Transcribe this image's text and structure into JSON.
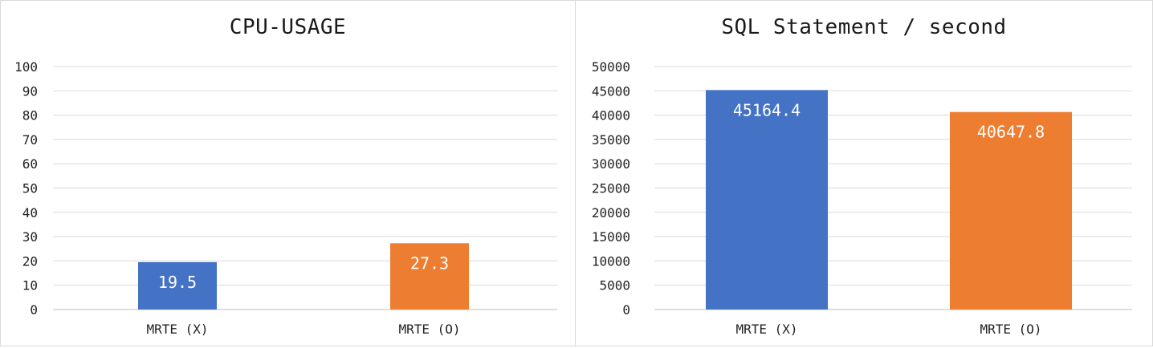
{
  "chart_data": [
    {
      "type": "bar",
      "title": "CPU-USAGE",
      "categories": [
        "MRTE (X)",
        "MRTE (O)"
      ],
      "values": [
        19.5,
        27.3
      ],
      "data_labels": [
        "19.5",
        "27.3"
      ],
      "colors": [
        "#4472c4",
        "#ed7d31"
      ],
      "ylim": [
        0,
        100
      ],
      "yticks": [
        0,
        10,
        20,
        30,
        40,
        50,
        60,
        70,
        80,
        90,
        100
      ],
      "ytick_labels": [
        "0",
        "10",
        "20",
        "30",
        "40",
        "50",
        "60",
        "70",
        "80",
        "90",
        "100"
      ],
      "xlabel": "",
      "ylabel": "",
      "grid": true,
      "legend": "none"
    },
    {
      "type": "bar",
      "title": "SQL Statement / second",
      "categories": [
        "MRTE (X)",
        "MRTE (O)"
      ],
      "values": [
        45164.4,
        40647.8
      ],
      "data_labels": [
        "45164.4",
        "40647.8"
      ],
      "colors": [
        "#4472c4",
        "#ed7d31"
      ],
      "ylim": [
        0,
        50000
      ],
      "yticks": [
        0,
        5000,
        10000,
        15000,
        20000,
        25000,
        30000,
        35000,
        40000,
        45000,
        50000
      ],
      "ytick_labels": [
        "0",
        "5000",
        "10000",
        "15000",
        "20000",
        "25000",
        "30000",
        "35000",
        "40000",
        "45000",
        "50000"
      ],
      "xlabel": "",
      "ylabel": "",
      "grid": true,
      "legend": "none"
    }
  ],
  "colors": {
    "grid": "#d9d9d9",
    "axis": "#bfbfbf",
    "text": "#222222"
  }
}
